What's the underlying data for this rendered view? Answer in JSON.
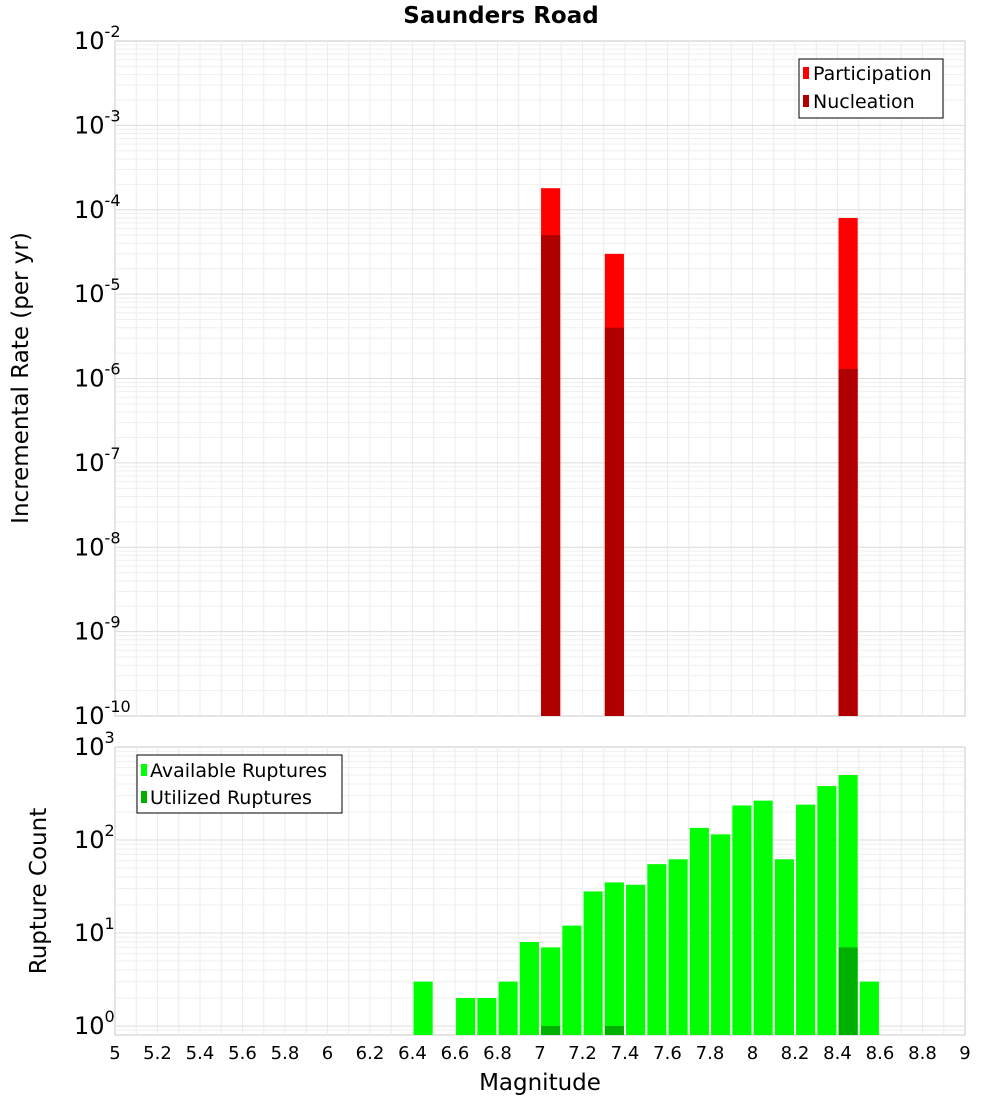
{
  "title": "Saunders Road",
  "chart_data": [
    {
      "type": "bar",
      "ylabel": "Incremental Rate (per yr)",
      "yscale": "log",
      "ylim": [
        1e-10,
        0.01
      ],
      "y_tick_exponents": [
        "-10",
        "-9",
        "-8",
        "-7",
        "-6",
        "-5",
        "-4",
        "-3",
        "-2"
      ],
      "y_tick_base": "10",
      "bar_width": 0.09,
      "legend": {
        "placement": "top-right",
        "entries": [
          {
            "label": "Participation",
            "color": "#ff0000"
          },
          {
            "label": "Nucleation",
            "color": "#b00000"
          }
        ]
      },
      "series": [
        {
          "name": "Participation",
          "color": "#ff0000",
          "x": [
            7.05,
            7.35,
            8.45
          ],
          "values": [
            0.00018,
            3e-05,
            8e-05
          ]
        },
        {
          "name": "Nucleation",
          "color": "#b00000",
          "x": [
            7.05,
            7.35,
            8.45
          ],
          "values": [
            5e-05,
            4e-06,
            1.3e-06
          ]
        }
      ]
    },
    {
      "type": "bar",
      "xlabel": "Magnitude",
      "ylabel": "Rupture Count",
      "yscale": "log",
      "ylim": [
        0.8,
        1000
      ],
      "y_tick_exponents": [
        "0",
        "1",
        "2",
        "3"
      ],
      "y_tick_base": "10",
      "xlim": [
        5,
        9
      ],
      "x_ticks": [
        "5",
        "5.2",
        "5.4",
        "5.6",
        "5.8",
        "6",
        "6.2",
        "6.4",
        "6.6",
        "6.8",
        "7",
        "7.2",
        "7.4",
        "7.6",
        "7.8",
        "8",
        "8.2",
        "8.4",
        "8.6",
        "8.8",
        "9"
      ],
      "bar_width": 0.09,
      "legend": {
        "placement": "top-left",
        "entries": [
          {
            "label": "Available Ruptures",
            "color": "#00ff00"
          },
          {
            "label": "Utilized Ruptures",
            "color": "#00b000"
          }
        ]
      },
      "series": [
        {
          "name": "Available Ruptures",
          "color": "#00ff00",
          "x": [
            6.45,
            6.65,
            6.75,
            6.85,
            6.95,
            7.05,
            7.15,
            7.25,
            7.35,
            7.45,
            7.55,
            7.65,
            7.75,
            7.85,
            7.95,
            8.05,
            8.15,
            8.25,
            8.35,
            8.45,
            8.55
          ],
          "values": [
            3,
            2,
            2,
            3,
            8,
            7,
            12,
            28,
            35,
            33,
            55,
            62,
            135,
            115,
            235,
            265,
            62,
            240,
            380,
            500,
            3
          ]
        },
        {
          "name": "Utilized Ruptures",
          "color": "#00b000",
          "x": [
            7.05,
            7.35,
            8.45
          ],
          "values": [
            1,
            1,
            7
          ]
        }
      ]
    }
  ]
}
